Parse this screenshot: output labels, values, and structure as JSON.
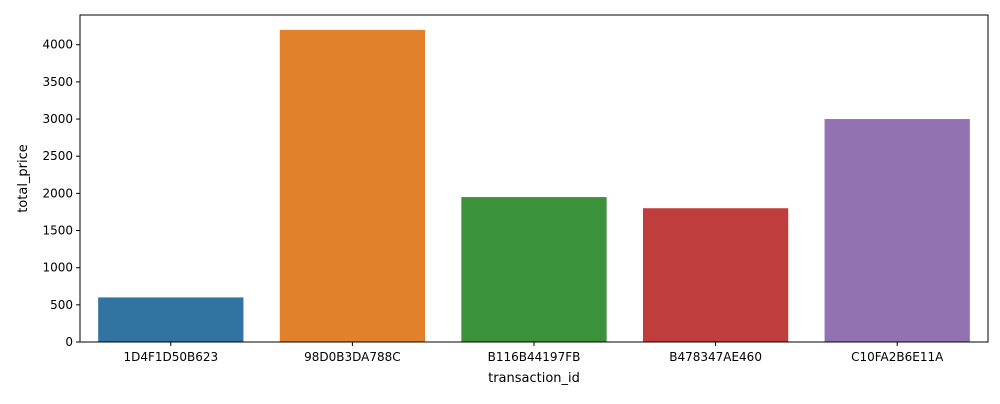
{
  "chart_data": {
    "type": "bar",
    "title": "",
    "xlabel": "transaction_id",
    "ylabel": "total_price",
    "categories": [
      "1D4F1D50B623",
      "98D0B3DA788C",
      "B116B44197FB",
      "B478347AE460",
      "C10FA2B6E11A"
    ],
    "values": [
      600,
      4200,
      1950,
      1800,
      3000
    ],
    "colors": [
      "#3274a1",
      "#e1812c",
      "#3a923a",
      "#c03d3e",
      "#9372b2"
    ],
    "ylim": [
      0,
      4400
    ],
    "yticks": [
      0,
      500,
      1000,
      1500,
      2000,
      2500,
      3000,
      3500,
      4000
    ],
    "grid": false,
    "legend": "none"
  }
}
